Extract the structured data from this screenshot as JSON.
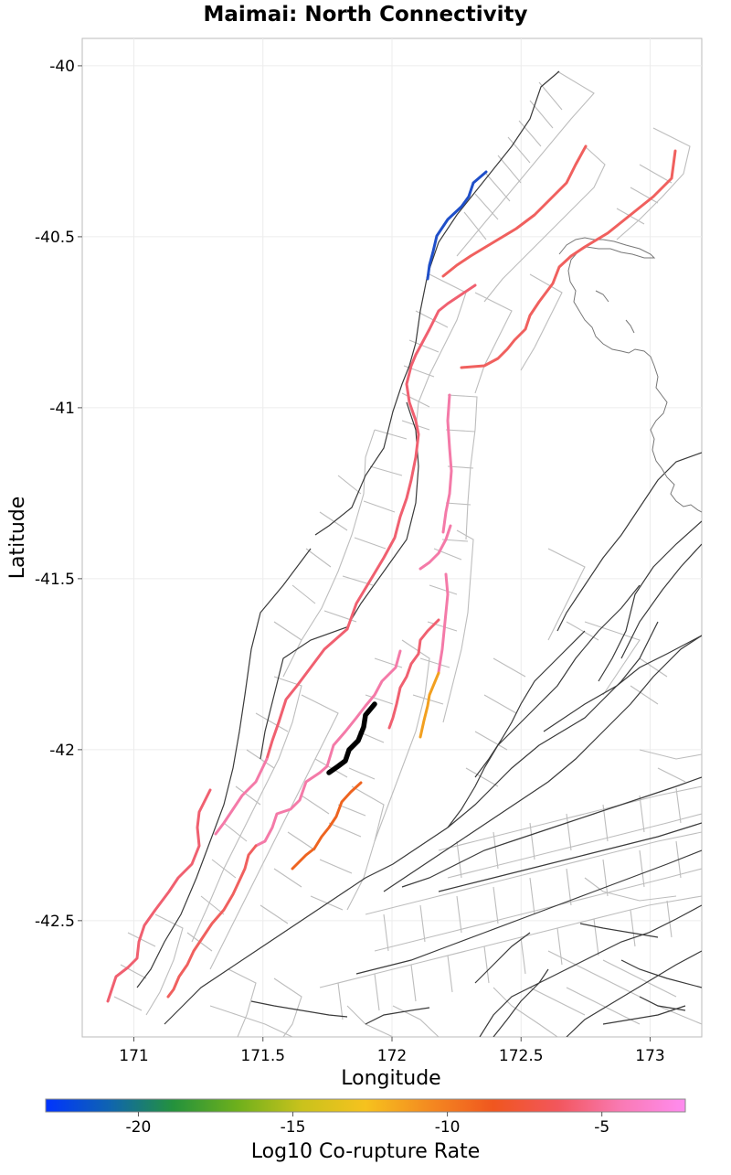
{
  "title": "Maimai: North Connectivity",
  "x_axis": {
    "label": "Longitude",
    "ticks": [
      "171",
      "171.5",
      "172",
      "172.5",
      "173"
    ],
    "tick_values": [
      171,
      171.5,
      172,
      172.5,
      173
    ],
    "range": [
      170.8,
      173.2
    ]
  },
  "y_axis": {
    "label": "Latitude",
    "ticks": [
      "-40",
      "-40.5",
      "-41",
      "-41.5",
      "-42",
      "-42.5"
    ],
    "tick_values": [
      -40,
      -40.5,
      -41,
      -41.5,
      -42,
      -42.5
    ],
    "range": [
      -42.84,
      -39.92
    ]
  },
  "colorbar": {
    "label": "Log10 Co-rupture Rate",
    "ticks": [
      "-20",
      "-15",
      "-10",
      "-5"
    ],
    "tick_values": [
      -20,
      -15,
      -10,
      -5
    ],
    "range": [
      -23,
      -2.3
    ],
    "gradient_colors": [
      "#0033ff",
      "#0f64b0",
      "#24923c",
      "#6eb01c",
      "#c9c21c",
      "#f6c21e",
      "#f48a20",
      "#f0561f",
      "#f2565c",
      "#f97ab4",
      "#ff8cf0"
    ]
  },
  "colors": {
    "focus_section": "#000000",
    "trace_dark": "#3a3a3a",
    "trace_light": "#bdbdbd",
    "coastline": "#777777"
  }
}
